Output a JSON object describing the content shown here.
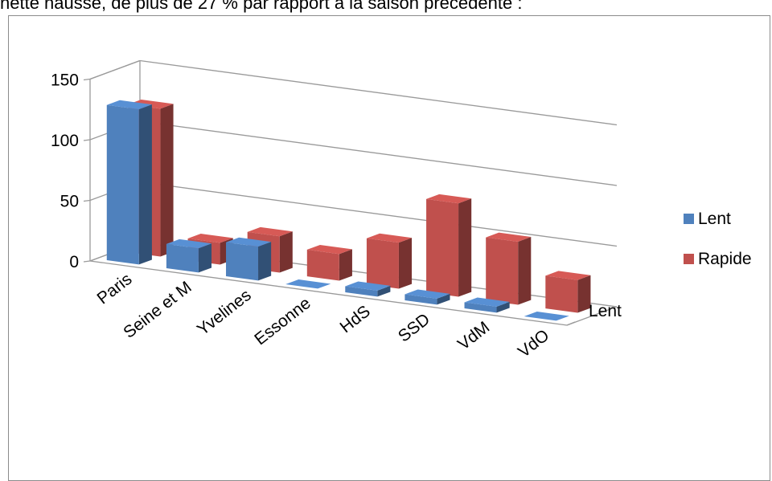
{
  "page": {
    "top_text": "nette hausse, de plus de 27 % par rapport à la saison précédente :"
  },
  "chart_data": {
    "type": "bar",
    "variant": "3d-column",
    "title": "",
    "categories": [
      "Paris",
      "Seine et M",
      "Yvelines",
      "Essonne",
      "HdS",
      "SSD",
      "VdM",
      "VdO"
    ],
    "series": [
      {
        "name": "Lent",
        "values": [
          128,
          20,
          28,
          0,
          5,
          5,
          5,
          0
        ],
        "color": "#4f81bd"
      },
      {
        "name": "Rapide",
        "values": [
          122,
          18,
          30,
          22,
          38,
          77,
          52,
          27
        ],
        "color": "#c0504d"
      }
    ],
    "depth_label": "Lent",
    "y_ticks": [
      "0",
      "50",
      "100",
      "150"
    ],
    "ylim": [
      0,
      150
    ],
    "grid": true,
    "legend_position": "right"
  }
}
